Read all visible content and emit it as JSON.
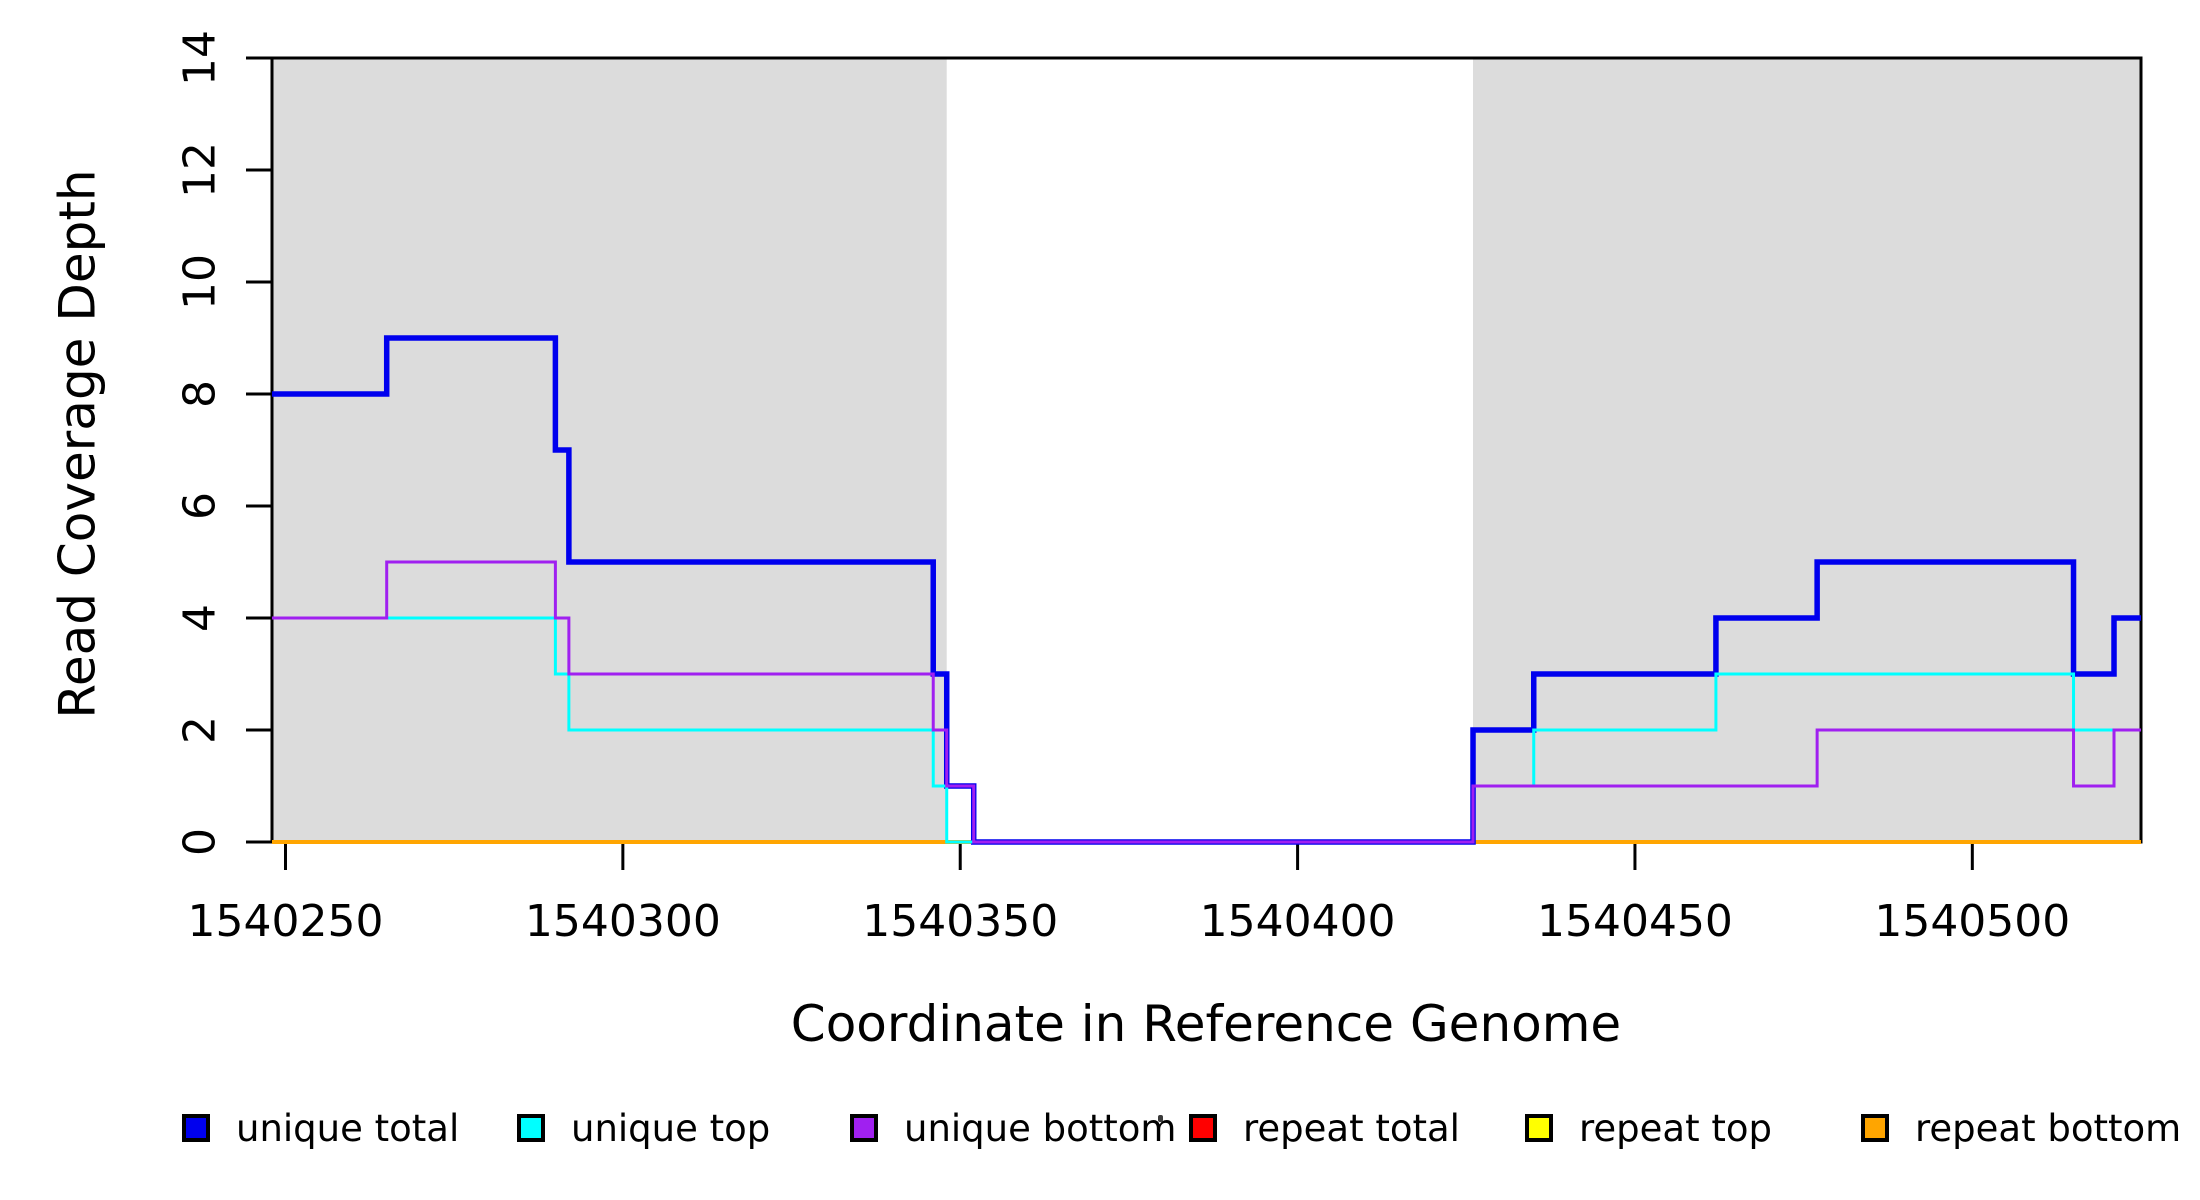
{
  "figure": {
    "background": "#ffffff",
    "xlabel": "Coordinate in Reference Genome",
    "ylabel": "Read Coverage Depth"
  },
  "chart_data": {
    "type": "line",
    "step_style": "step-after",
    "title": "",
    "xlabel": "Coordinate in Reference Genome",
    "ylabel": "Read Coverage Depth",
    "xlim": [
      1540248,
      1540525
    ],
    "ylim": [
      0,
      14
    ],
    "x_ticks": [
      1540250,
      1540300,
      1540350,
      1540400,
      1540450,
      1540500
    ],
    "y_ticks": [
      0,
      2,
      4,
      6,
      8,
      10,
      12,
      14
    ],
    "grid": false,
    "legend_position": "bottom",
    "shaded_regions": [
      {
        "name": "left-gray-block",
        "x0": 1540248,
        "x1": 1540348,
        "color": "#DCDCDC"
      },
      {
        "name": "right-gray-block",
        "x0": 1540426,
        "x1": 1540525,
        "color": "#DCDCDC"
      }
    ],
    "series": [
      {
        "name": "unique total",
        "color": "#0000EE",
        "linewidth": 5.5,
        "zorder": 4,
        "points": [
          [
            1540248,
            8
          ],
          [
            1540265,
            9
          ],
          [
            1540290,
            7
          ],
          [
            1540292,
            5
          ],
          [
            1540346,
            3
          ],
          [
            1540348,
            1
          ],
          [
            1540352,
            0
          ],
          [
            1540426,
            2
          ],
          [
            1540435,
            3
          ],
          [
            1540462,
            4
          ],
          [
            1540477,
            5
          ],
          [
            1540515,
            3
          ],
          [
            1540521,
            4
          ],
          [
            1540525,
            4
          ]
        ]
      },
      {
        "name": "unique top",
        "color": "#00FFFF",
        "linewidth": 3,
        "zorder": 5,
        "points": [
          [
            1540248,
            4
          ],
          [
            1540290,
            3
          ],
          [
            1540292,
            2
          ],
          [
            1540346,
            1
          ],
          [
            1540348,
            0
          ],
          [
            1540426,
            1
          ],
          [
            1540435,
            2
          ],
          [
            1540462,
            3
          ],
          [
            1540515,
            2
          ],
          [
            1540525,
            2
          ]
        ]
      },
      {
        "name": "unique bottom",
        "color": "#A020F0",
        "linewidth": 3,
        "zorder": 6,
        "points": [
          [
            1540248,
            4
          ],
          [
            1540265,
            5
          ],
          [
            1540290,
            4
          ],
          [
            1540292,
            3
          ],
          [
            1540346,
            2
          ],
          [
            1540348,
            1
          ],
          [
            1540352,
            0
          ],
          [
            1540426,
            1
          ],
          [
            1540477,
            2
          ],
          [
            1540515,
            1
          ],
          [
            1540521,
            2
          ],
          [
            1540525,
            2
          ]
        ]
      },
      {
        "name": "repeat total",
        "color": "#FF0000",
        "linewidth": 3,
        "zorder": 1,
        "points": [
          [
            1540248,
            0
          ],
          [
            1540525,
            0
          ]
        ]
      },
      {
        "name": "repeat top",
        "color": "#FFFF00",
        "linewidth": 3,
        "zorder": 2,
        "points": [
          [
            1540248,
            0
          ],
          [
            1540525,
            0
          ]
        ]
      },
      {
        "name": "repeat bottom",
        "color": "#FFA500",
        "linewidth": 4,
        "zorder": 3,
        "points": [
          [
            1540248,
            0
          ],
          [
            1540525,
            0
          ]
        ]
      }
    ],
    "legend": [
      {
        "label": "unique total",
        "color": "#0000EE"
      },
      {
        "label": "unique top",
        "color": "#00FFFF"
      },
      {
        "label": "unique bottom",
        "color": "#A020F0"
      },
      {
        "label": "repeat total",
        "color": "#FF0000"
      },
      {
        "label": "repeat top",
        "color": "#FFFF00"
      },
      {
        "label": "repeat bottom",
        "color": "#FFA500"
      }
    ]
  }
}
